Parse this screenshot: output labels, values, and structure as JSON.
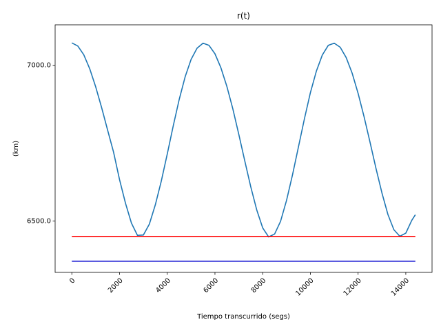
{
  "chart_data": {
    "type": "line",
    "title": "r(t)",
    "xlabel": "Tiempo transcurrido (segs)",
    "ylabel": "(km)",
    "xlim": [
      -700,
      15100
    ],
    "ylim": [
      6335,
      7130
    ],
    "x_ticks": [
      0,
      2000,
      4000,
      6000,
      8000,
      10000,
      12000,
      14000
    ],
    "x_tick_labels": [
      "0",
      "2000",
      "4000",
      "6000",
      "8000",
      "10000",
      "12000",
      "14000"
    ],
    "y_ticks": [
      6500,
      7000
    ],
    "y_tick_labels": [
      "6500.0",
      "7000.0"
    ],
    "grid": false,
    "series": [
      {
        "color": "#1f77b4",
        "x": [
          0,
          250,
          500,
          750,
          1000,
          1250,
          1500,
          1750,
          2000,
          2250,
          2500,
          2750,
          3000,
          3250,
          3500,
          3750,
          4000,
          4250,
          4500,
          4750,
          5000,
          5250,
          5500,
          5750,
          6000,
          6250,
          6500,
          6750,
          7000,
          7250,
          7500,
          7750,
          8000,
          8250,
          8500,
          8750,
          9000,
          9250,
          9500,
          9750,
          10000,
          10250,
          10500,
          10750,
          11000,
          11250,
          11500,
          11750,
          12000,
          12250,
          12500,
          12750,
          13000,
          13250,
          13500,
          13750,
          14000,
          14250,
          14400
        ],
        "y": [
          7072,
          7062,
          7034,
          6989,
          6931,
          6864,
          6792,
          6721,
          6633,
          6557,
          6493,
          6454,
          6455,
          6490,
          6552,
          6628,
          6715,
          6805,
          6890,
          6963,
          7019,
          7055,
          7071,
          7064,
          7037,
          6992,
          6932,
          6860,
          6778,
          6693,
          6610,
          6536,
          6478,
          6449,
          6458,
          6499,
          6566,
          6648,
          6738,
          6828,
          6912,
          6981,
          7033,
          7064,
          7071,
          7058,
          7025,
          6975,
          6910,
          6835,
          6753,
          6669,
          6590,
          6521,
          6472,
          6451,
          6461,
          6502,
          6520
        ]
      },
      {
        "color": "#ff0000",
        "x": [
          0,
          14400
        ],
        "y": [
          6450,
          6450
        ]
      },
      {
        "color": "#0000cd",
        "x": [
          0,
          14400
        ],
        "y": [
          6371,
          6371
        ]
      }
    ]
  }
}
